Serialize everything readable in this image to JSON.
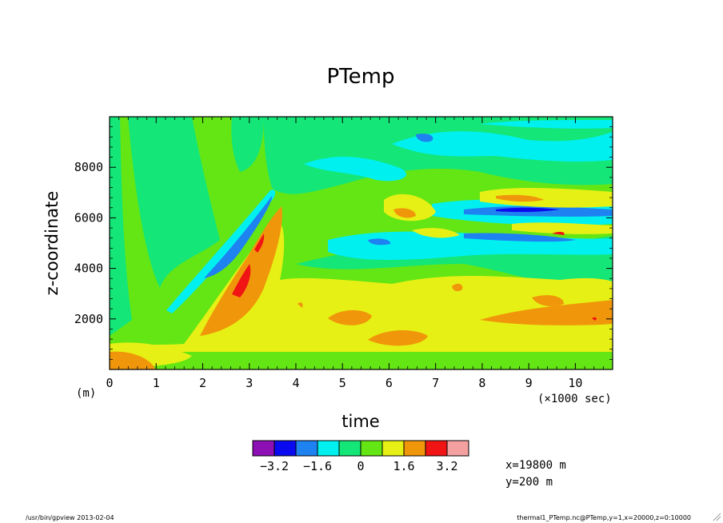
{
  "chart_data": {
    "type": "heatmap",
    "title": "PTemp",
    "xlabel": "time",
    "ylabel": "z-coordinate",
    "x_unit": "(×1000 sec)",
    "y_unit": "(m)",
    "xlim": [
      0,
      10.8
    ],
    "ylim": [
      0,
      10000
    ],
    "x_ticks": [
      0,
      1,
      2,
      3,
      4,
      5,
      6,
      7,
      8,
      9,
      10
    ],
    "y_ticks": [
      2000,
      4000,
      6000,
      8000
    ],
    "colorbar": {
      "levels": [
        -4.0,
        -3.2,
        -2.4,
        -1.6,
        -0.8,
        0,
        0.8,
        1.6,
        2.4,
        3.2,
        4.0
      ],
      "colors": [
        "#8c10b4",
        "#0a0af0",
        "#1e82f0",
        "#00f0f0",
        "#14e678",
        "#64e614",
        "#e6f014",
        "#f0960a",
        "#f01414",
        "#f5a0a0"
      ],
      "tick_labels": [
        "-3.2",
        "-1.6",
        "0",
        "1.6",
        "3.2"
      ]
    },
    "annotations": [
      "x=19800 m",
      "y=200 m"
    ],
    "footer_left": "/usr/bin/gpview  2013-02-04",
    "footer_right": "thermal1_PTemp.nc@PTemp,y=1,x=20000,z=0:10000"
  },
  "icons": {
    "corner": "resize-grip-icon"
  }
}
